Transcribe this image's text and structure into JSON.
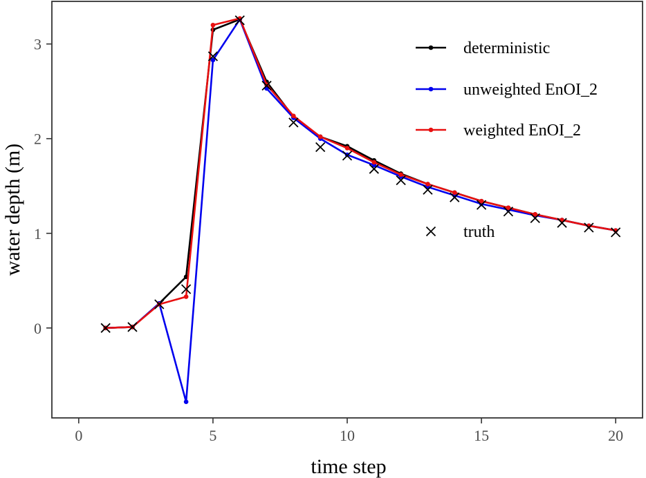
{
  "chart_data": {
    "type": "line",
    "xlabel": "time step",
    "ylabel": "water depth (m)",
    "xlim": [
      -1,
      21
    ],
    "ylim": [
      -0.95,
      3.45
    ],
    "x_ticks": [
      0,
      5,
      10,
      15,
      20
    ],
    "x_tick_labels": [
      "0",
      "5",
      "10",
      "15",
      "20"
    ],
    "y_ticks": [
      0,
      1,
      2,
      3
    ],
    "y_tick_labels": [
      "0",
      "1",
      "2",
      "3"
    ],
    "grid": false,
    "legend_position": "right",
    "x": [
      1,
      2,
      3,
      4,
      5,
      6,
      7,
      8,
      9,
      10,
      11,
      12,
      13,
      14,
      15,
      16,
      17,
      18,
      19,
      20
    ],
    "series": [
      {
        "name": "deterministic",
        "color": "#000000",
        "style": "line-points",
        "values": [
          0.0,
          0.01,
          0.26,
          0.54,
          3.15,
          3.26,
          2.6,
          2.23,
          2.02,
          1.92,
          1.77,
          1.63,
          1.52,
          1.43,
          1.34,
          1.27,
          1.2,
          1.14,
          1.08,
          1.03
        ]
      },
      {
        "name": "unweighted EnOI_2",
        "color": "#0000ee",
        "style": "line-points",
        "values": [
          0.0,
          0.01,
          0.26,
          -0.78,
          2.83,
          3.26,
          2.53,
          2.22,
          2.0,
          1.83,
          1.72,
          1.6,
          1.49,
          1.4,
          1.31,
          1.25,
          1.19,
          1.14,
          1.08,
          1.03
        ]
      },
      {
        "name": "weighted EnOI_2",
        "color": "#e81010",
        "style": "line-points",
        "values": [
          0.0,
          0.01,
          0.25,
          0.33,
          3.2,
          3.27,
          2.57,
          2.24,
          2.02,
          1.9,
          1.75,
          1.62,
          1.52,
          1.43,
          1.34,
          1.27,
          1.2,
          1.14,
          1.08,
          1.03
        ]
      },
      {
        "name": "truth",
        "color": "#000000",
        "style": "x-markers",
        "values": [
          0.0,
          0.01,
          0.25,
          0.41,
          2.87,
          3.25,
          2.56,
          2.17,
          1.91,
          1.82,
          1.68,
          1.56,
          1.46,
          1.38,
          1.3,
          1.23,
          1.16,
          1.11,
          1.06,
          1.01
        ]
      }
    ]
  }
}
